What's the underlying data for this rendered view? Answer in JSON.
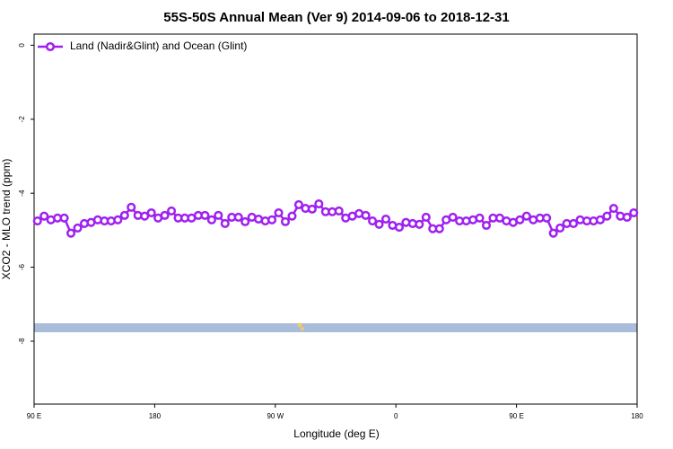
{
  "chart_data": {
    "type": "line",
    "title": "55S-50S Annual Mean (Ver 9)   2014-09-06 to 2018-12-31",
    "xlabel": "Longitude (deg E)",
    "ylabel": "XCO2 - MLO trend (ppm)",
    "xlim": [
      90,
      540
    ],
    "ylim": [
      -9.7,
      0.3
    ],
    "xticks": [
      {
        "value": 90,
        "label": "90 E"
      },
      180,
      {
        "value": 270,
        "label": "90 W"
      },
      {
        "value": 360,
        "label": "0"
      },
      {
        "value": 450,
        "label": "90 E"
      },
      {
        "value": 540,
        "label": "180"
      }
    ],
    "yticks": [
      0,
      -2,
      -4,
      -6,
      -8
    ],
    "legend": "top-left",
    "x": [
      92.5,
      97.5,
      102.5,
      107.5,
      112.5,
      117.5,
      122.5,
      127.5,
      132.5,
      137.5,
      142.5,
      147.5,
      152.5,
      157.5,
      162.5,
      167.5,
      172.5,
      177.5,
      182.5,
      187.5,
      192.5,
      197.5,
      202.5,
      207.5,
      212.5,
      217.5,
      222.5,
      227.5,
      232.5,
      237.5,
      242.5,
      247.5,
      252.5,
      257.5,
      262.5,
      267.5,
      272.5,
      277.5,
      282.5,
      287.5,
      292.5,
      297.5,
      302.5,
      307.5,
      312.5,
      317.5,
      322.5,
      327.5,
      332.5,
      337.5,
      342.5,
      347.5,
      352.5,
      357.5,
      362.5,
      367.5,
      372.5,
      377.5,
      382.5,
      387.5,
      392.5,
      397.5,
      402.5,
      407.5,
      412.5,
      417.5,
      422.5,
      427.5,
      432.5,
      437.5,
      442.5,
      447.5,
      452.5,
      457.5,
      462.5,
      467.5,
      472.5,
      477.5,
      482.5,
      487.5,
      492.5,
      497.5,
      502.5,
      507.5,
      512.5,
      517.5,
      522.5,
      527.5,
      532.5,
      537.5
    ],
    "series": [
      {
        "name": "Land (Nadir&Glint) and Ocean (Glint)",
        "color": "#a020f0",
        "values": [
          -4.75,
          -4.62,
          -4.72,
          -4.67,
          -4.67,
          -5.08,
          -4.94,
          -4.82,
          -4.79,
          -4.72,
          -4.75,
          -4.75,
          -4.72,
          -4.6,
          -4.38,
          -4.6,
          -4.62,
          -4.53,
          -4.67,
          -4.6,
          -4.48,
          -4.67,
          -4.67,
          -4.67,
          -4.6,
          -4.6,
          -4.72,
          -4.6,
          -4.82,
          -4.65,
          -4.65,
          -4.77,
          -4.65,
          -4.7,
          -4.75,
          -4.72,
          -4.53,
          -4.77,
          -4.62,
          -4.31,
          -4.41,
          -4.43,
          -4.29,
          -4.5,
          -4.5,
          -4.48,
          -4.67,
          -4.62,
          -4.55,
          -4.6,
          -4.75,
          -4.84,
          -4.7,
          -4.87,
          -4.92,
          -4.79,
          -4.82,
          -4.84,
          -4.65,
          -4.96,
          -4.96,
          -4.72,
          -4.65,
          -4.75,
          -4.75,
          -4.72,
          -4.67,
          -4.87,
          -4.67,
          -4.67,
          -4.75,
          -4.79,
          -4.72,
          -4.62,
          -4.72,
          -4.67,
          -4.67,
          -5.08,
          -4.94,
          -4.82,
          -4.82,
          -4.72,
          -4.75,
          -4.75,
          -4.72,
          -4.62,
          -4.41,
          -4.62,
          -4.65,
          -4.53
        ]
      }
    ]
  }
}
